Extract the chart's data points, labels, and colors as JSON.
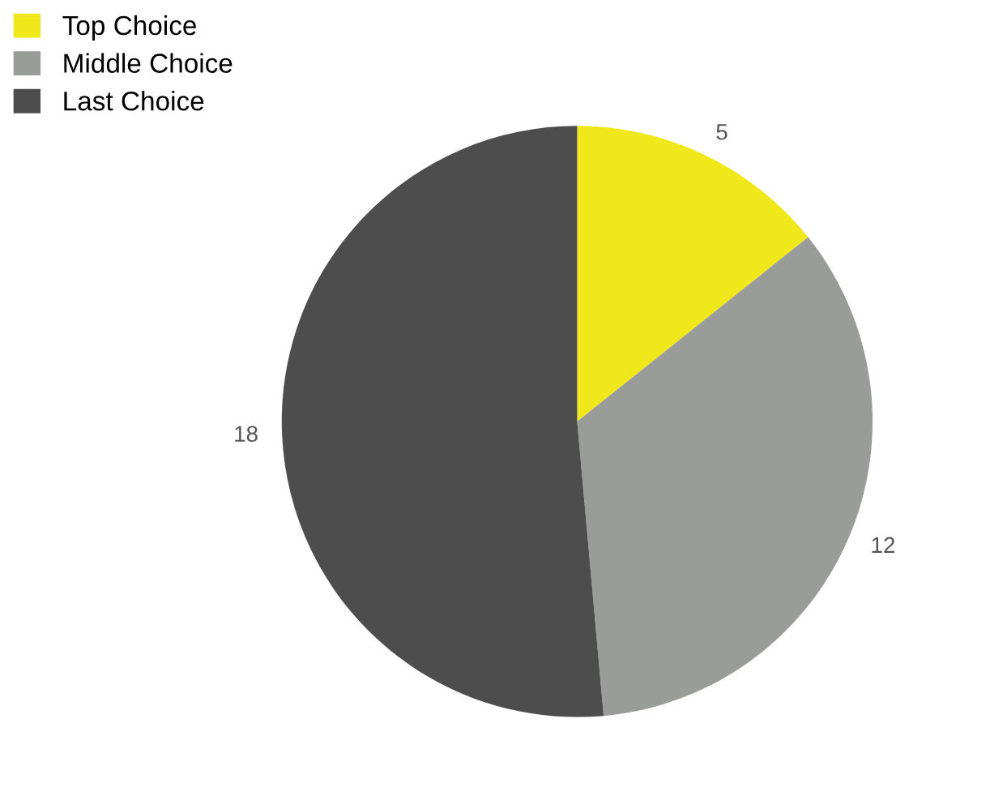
{
  "chart_data": {
    "type": "pie",
    "categories": [
      "Top Choice",
      "Middle Choice",
      "Last Choice"
    ],
    "values": [
      5,
      12,
      18
    ],
    "colors": [
      "#f0e81a",
      "#9a9c9a",
      "#4d4d4d"
    ],
    "data_labels": true,
    "legend": "top left"
  }
}
